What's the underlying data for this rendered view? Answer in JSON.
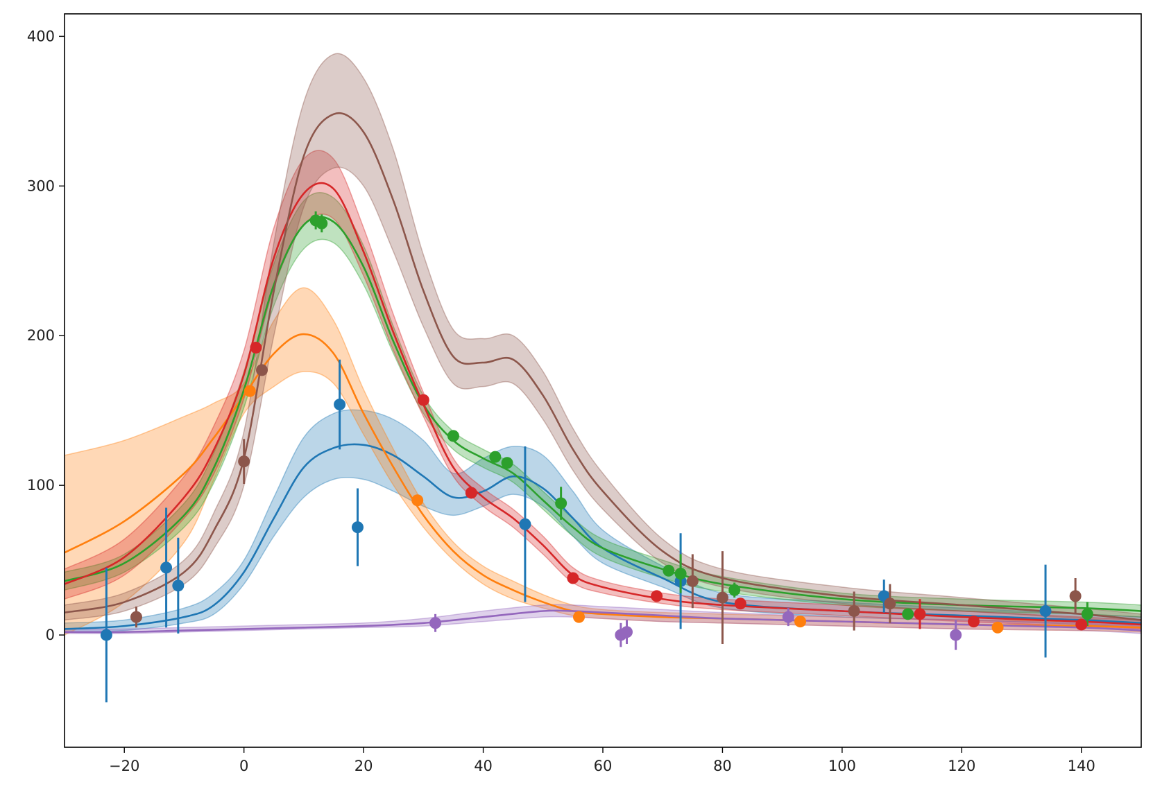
{
  "chart_data": {
    "type": "line",
    "title": "",
    "xlabel": "",
    "ylabel": "",
    "xlim": [
      -30,
      150
    ],
    "ylim": [
      -75,
      415
    ],
    "xticks": [
      -20,
      0,
      20,
      40,
      60,
      80,
      100,
      120,
      140
    ],
    "yticks": [
      0,
      100,
      200,
      300,
      400
    ],
    "grid": false,
    "legend": "none",
    "series": [
      {
        "color": "#1f77b4",
        "curve": {
          "x": [
            -30,
            -20,
            -10,
            -5,
            0,
            5,
            10,
            15,
            20,
            25,
            30,
            35,
            40,
            45,
            50,
            55,
            60,
            70,
            80,
            100,
            120,
            140,
            150
          ],
          "y": [
            4,
            6,
            12,
            20,
            42,
            78,
            112,
            125,
            127,
            120,
            106,
            92,
            96,
            106,
            98,
            78,
            58,
            38,
            22,
            16,
            13,
            10,
            8
          ],
          "lower": [
            2,
            3,
            8,
            14,
            34,
            66,
            92,
            104,
            104,
            96,
            86,
            80,
            86,
            94,
            86,
            66,
            48,
            32,
            18,
            12,
            10,
            7,
            5
          ],
          "upper": [
            8,
            10,
            18,
            28,
            50,
            92,
            132,
            148,
            150,
            144,
            130,
            108,
            118,
            126,
            120,
            96,
            70,
            46,
            28,
            22,
            18,
            14,
            12
          ]
        },
        "points": [
          {
            "x": -23,
            "y": 0,
            "err": 45
          },
          {
            "x": -13,
            "y": 45,
            "err": 40
          },
          {
            "x": -11,
            "y": 33,
            "err": 32
          },
          {
            "x": 16,
            "y": 154,
            "err": 30
          },
          {
            "x": 19,
            "y": 72,
            "err": 26
          },
          {
            "x": 47,
            "y": 74,
            "err": 52
          },
          {
            "x": 73,
            "y": 36,
            "err": 32
          },
          {
            "x": 107,
            "y": 26,
            "err": 11
          },
          {
            "x": 134,
            "y": 16,
            "err": 31
          }
        ]
      },
      {
        "color": "#ff7f0e",
        "curve": {
          "x": [
            -30,
            -20,
            -10,
            -5,
            0,
            5,
            10,
            15,
            20,
            25,
            30,
            35,
            40,
            45,
            50,
            55,
            60,
            70,
            80,
            100,
            120,
            140,
            150
          ],
          "y": [
            55,
            76,
            108,
            132,
            160,
            188,
            201,
            188,
            148,
            112,
            80,
            56,
            40,
            30,
            22,
            16,
            14,
            12,
            11,
            9,
            7,
            6,
            5
          ],
          "lower": [
            0,
            22,
            62,
            104,
            148,
            166,
            176,
            168,
            134,
            100,
            72,
            50,
            34,
            24,
            18,
            13,
            11,
            9,
            8,
            6,
            4,
            3,
            2
          ],
          "upper": [
            120,
            130,
            146,
            155,
            168,
            210,
            232,
            210,
            164,
            124,
            88,
            62,
            46,
            36,
            27,
            20,
            17,
            15,
            14,
            12,
            10,
            9,
            8
          ]
        },
        "points": [
          {
            "x": 1,
            "y": 163,
            "err": 0
          },
          {
            "x": 29,
            "y": 90,
            "err": 0
          },
          {
            "x": 56,
            "y": 12,
            "err": 0
          },
          {
            "x": 93,
            "y": 9,
            "err": 0
          },
          {
            "x": 126,
            "y": 5,
            "err": 0
          }
        ]
      },
      {
        "color": "#2ca02c",
        "curve": {
          "x": [
            -30,
            -20,
            -10,
            -5,
            0,
            5,
            10,
            15,
            20,
            25,
            30,
            35,
            40,
            45,
            50,
            55,
            60,
            70,
            80,
            100,
            120,
            140,
            150
          ],
          "y": [
            36,
            48,
            80,
            112,
            164,
            234,
            274,
            276,
            246,
            196,
            154,
            130,
            118,
            108,
            90,
            72,
            58,
            44,
            34,
            24,
            20,
            18,
            16
          ],
          "lower": [
            30,
            42,
            72,
            102,
            152,
            220,
            258,
            262,
            234,
            188,
            148,
            124,
            112,
            102,
            84,
            66,
            52,
            38,
            29,
            20,
            16,
            14,
            12
          ],
          "upper": [
            42,
            54,
            88,
            122,
            176,
            248,
            290,
            292,
            260,
            206,
            160,
            136,
            124,
            114,
            96,
            78,
            64,
            50,
            39,
            28,
            24,
            22,
            20
          ]
        },
        "points": [
          {
            "x": 12,
            "y": 277,
            "err": 6
          },
          {
            "x": 13,
            "y": 275,
            "err": 6
          },
          {
            "x": 35,
            "y": 133,
            "err": 3
          },
          {
            "x": 42,
            "y": 119,
            "err": 3
          },
          {
            "x": 44,
            "y": 115,
            "err": 3
          },
          {
            "x": 53,
            "y": 88,
            "err": 11
          },
          {
            "x": 71,
            "y": 43,
            "err": 3
          },
          {
            "x": 73,
            "y": 41,
            "err": 13
          },
          {
            "x": 82,
            "y": 30,
            "err": 5
          },
          {
            "x": 111,
            "y": 14,
            "err": 3
          },
          {
            "x": 141,
            "y": 14,
            "err": 8
          }
        ]
      },
      {
        "color": "#d62728",
        "curve": {
          "x": [
            -30,
            -20,
            -10,
            -5,
            0,
            5,
            10,
            15,
            20,
            25,
            30,
            35,
            40,
            45,
            50,
            55,
            60,
            70,
            80,
            100,
            120,
            140,
            150
          ],
          "y": [
            34,
            52,
            92,
            124,
            174,
            252,
            295,
            298,
            256,
            202,
            154,
            112,
            92,
            78,
            60,
            40,
            32,
            24,
            20,
            16,
            12,
            9,
            7
          ],
          "lower": [
            24,
            40,
            78,
            108,
            158,
            232,
            274,
            278,
            240,
            190,
            146,
            106,
            86,
            72,
            54,
            35,
            28,
            21,
            17,
            13,
            9,
            6,
            4
          ],
          "upper": [
            44,
            64,
            106,
            140,
            190,
            272,
            318,
            318,
            272,
            214,
            162,
            118,
            98,
            84,
            66,
            45,
            36,
            28,
            24,
            20,
            16,
            12,
            10
          ]
        },
        "points": [
          {
            "x": 2,
            "y": 192,
            "err": 0
          },
          {
            "x": 30,
            "y": 157,
            "err": 0
          },
          {
            "x": 38,
            "y": 95,
            "err": 0
          },
          {
            "x": 55,
            "y": 38,
            "err": 0
          },
          {
            "x": 69,
            "y": 26,
            "err": 0
          },
          {
            "x": 83,
            "y": 21,
            "err": 0
          },
          {
            "x": 113,
            "y": 14,
            "err": 10
          },
          {
            "x": 122,
            "y": 9,
            "err": 0
          },
          {
            "x": 140,
            "y": 7,
            "err": 0
          }
        ]
      },
      {
        "color": "#9467bd",
        "curve": {
          "x": [
            -30,
            -20,
            -10,
            0,
            10,
            20,
            30,
            40,
            50,
            55,
            60,
            70,
            80,
            100,
            120,
            140,
            150
          ],
          "y": [
            2,
            2,
            3,
            4,
            5,
            6,
            8,
            12,
            16,
            16,
            15,
            13,
            11,
            9,
            7,
            5,
            3
          ],
          "lower": [
            1,
            1,
            2,
            3,
            4,
            5,
            6,
            9,
            12,
            12,
            11,
            9,
            8,
            6,
            4,
            3,
            1
          ],
          "upper": [
            4,
            4,
            5,
            6,
            7,
            8,
            11,
            16,
            20,
            20,
            19,
            17,
            15,
            12,
            10,
            8,
            6
          ]
        },
        "points": [
          {
            "x": 32,
            "y": 8,
            "err": 6
          },
          {
            "x": 63,
            "y": 0,
            "err": 8
          },
          {
            "x": 64,
            "y": 2,
            "err": 8
          },
          {
            "x": 91,
            "y": 12,
            "err": 6
          },
          {
            "x": 119,
            "y": 0,
            "err": 10
          }
        ]
      },
      {
        "color": "#8c564b",
        "curve": {
          "x": [
            -30,
            -20,
            -10,
            -5,
            0,
            5,
            10,
            15,
            20,
            25,
            30,
            35,
            40,
            45,
            50,
            55,
            60,
            70,
            80,
            100,
            120,
            140,
            150
          ],
          "y": [
            15,
            22,
            42,
            70,
            118,
            230,
            320,
            348,
            336,
            290,
            230,
            186,
            182,
            184,
            160,
            124,
            96,
            56,
            38,
            26,
            20,
            14,
            10
          ],
          "lower": [
            10,
            16,
            34,
            58,
            100,
            200,
            286,
            312,
            300,
            256,
            206,
            168,
            166,
            168,
            144,
            110,
            84,
            48,
            32,
            21,
            16,
            11,
            7
          ],
          "upper": [
            20,
            28,
            50,
            82,
            136,
            262,
            356,
            388,
            372,
            324,
            254,
            204,
            198,
            200,
            176,
            138,
            108,
            64,
            44,
            32,
            25,
            18,
            14
          ]
        },
        "points": [
          {
            "x": -18,
            "y": 12,
            "err": 7
          },
          {
            "x": 0,
            "y": 116,
            "err": 15
          },
          {
            "x": 3,
            "y": 177,
            "err": 0
          },
          {
            "x": 75,
            "y": 36,
            "err": 18
          },
          {
            "x": 80,
            "y": 25,
            "err": 31
          },
          {
            "x": 102,
            "y": 16,
            "err": 13
          },
          {
            "x": 108,
            "y": 21,
            "err": 13
          },
          {
            "x": 139,
            "y": 26,
            "err": 12
          }
        ]
      }
    ]
  }
}
